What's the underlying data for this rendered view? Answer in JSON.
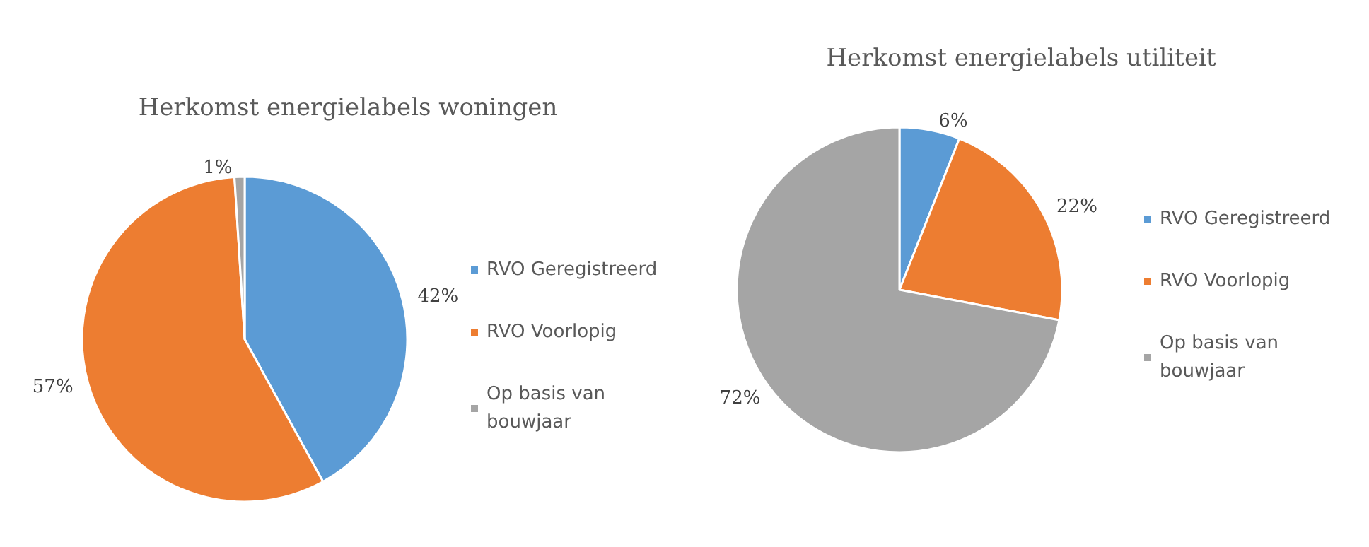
{
  "chart_data": [
    {
      "type": "pie",
      "title": "Herkomst energielabels woningen",
      "categories": [
        "RVO Geregistreerd",
        "RVO Voorlopig",
        "Op basis van bouwjaar"
      ],
      "values": [
        42,
        57,
        1
      ],
      "colors": [
        "#5b9bd5",
        "#ed7d31",
        "#a5a5a5"
      ],
      "value_labels": [
        "42%",
        "57%",
        "1%"
      ],
      "legend": "right"
    },
    {
      "type": "pie",
      "title": "Herkomst energielabels utiliteit",
      "categories": [
        "RVO Geregistreerd",
        "RVO Voorlopig",
        "Op basis van bouwjaar"
      ],
      "values": [
        6,
        22,
        72
      ],
      "colors": [
        "#5b9bd5",
        "#ed7d31",
        "#a5a5a5"
      ],
      "value_labels": [
        "6%",
        "22%",
        "72%"
      ],
      "legend": "right"
    }
  ]
}
